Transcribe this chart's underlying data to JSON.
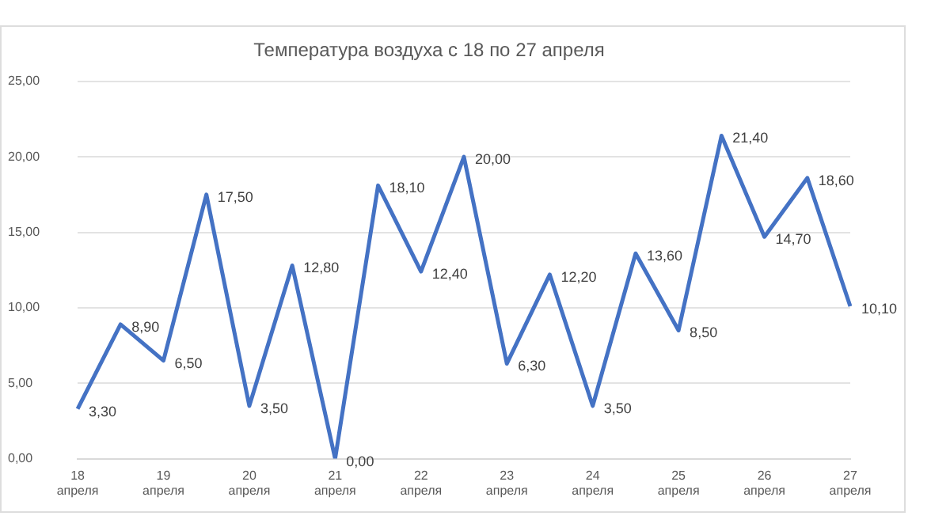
{
  "chart_data": {
    "type": "line",
    "title": "Температура воздуха с 18 по 27 апреля",
    "categories": [
      "18 апреля",
      null,
      "19 апреля",
      null,
      "20 апреля",
      null,
      "21 апреля",
      null,
      "22 апреля",
      null,
      "23 апреля",
      null,
      "24 апреля",
      null,
      "25 апреля",
      null,
      "26 апреля",
      null,
      "27 апреля"
    ],
    "series": [
      {
        "color": "#4472c4",
        "values": [
          3.3,
          8.9,
          6.5,
          17.5,
          3.5,
          12.8,
          0,
          18.1,
          12.4,
          20,
          6.3,
          12.2,
          3.5,
          13.6,
          8.5,
          21.4,
          14.7,
          18.6,
          10.1
        ],
        "value_labels": [
          "3,30",
          "8,90",
          "6,50",
          "17,50",
          "3,50",
          "12,80",
          "0,00",
          "18,10",
          "12,40",
          "20,00",
          "6,30",
          "12,20",
          "3,50",
          "13,60",
          "8,50",
          "21,40",
          "14,70",
          "18,60",
          "10,10"
        ]
      }
    ],
    "ylim": [
      0,
      25
    ],
    "yticks": [
      {
        "value": 0,
        "label": "0,00"
      },
      {
        "value": 5,
        "label": "5,00"
      },
      {
        "value": 10,
        "label": "10,00"
      },
      {
        "value": 15,
        "label": "15,00"
      },
      {
        "value": 20,
        "label": "20,00"
      },
      {
        "value": 25,
        "label": "25,00"
      }
    ],
    "grid": "y",
    "legend": false,
    "marker": "none",
    "line_style": "solid"
  }
}
